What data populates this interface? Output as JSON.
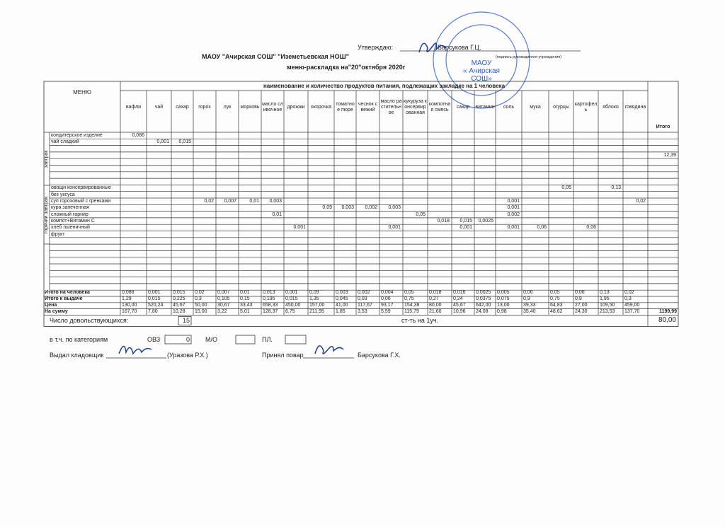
{
  "approval": {
    "label": "Утверждаю:",
    "name": "Барсукова Г.Ц.",
    "caption": "(подпись руководителя учреждения)"
  },
  "header": {
    "school": "МАОУ \"Ачирская СОШ\" \"Иземетьевская НОШ\"",
    "title": "меню-раскладка на\"20\"октября 2020г"
  },
  "stamp": [
    "МАОУ",
    "« Ачирская",
    "СОШ»"
  ],
  "table": {
    "menu_header": "МЕНЮ",
    "products_header": "наименование и количество продуктов питания, подлежащих закладке на 1 человека",
    "total_header": "Итого",
    "columns": [
      "вафли",
      "чай",
      "сахар",
      "горох",
      "лук",
      "моркoвь",
      "масло сливочное",
      "дрожжи",
      "окорочка",
      "томатное пюре",
      "чеснок свежий",
      "масло растительное",
      "кукуруза консервированная",
      "компотная смесь",
      "сахар",
      "витамин",
      "соль",
      "мука",
      "огурцы",
      "картофель",
      "яблоко",
      "говядина"
    ],
    "groups": [
      {
        "label": "завтрак",
        "rows": [
          {
            "name": "кондитерское изделие",
            "cells": [
              "0,086",
              null,
              null,
              null,
              null,
              null,
              null,
              null,
              null,
              null,
              null,
              null,
              null,
              null,
              null,
              null,
              null,
              null,
              null,
              null,
              null,
              null
            ]
          },
          {
            "name": "чай сладкий",
            "cells": [
              null,
              "0,001",
              "0,015",
              null,
              null,
              null,
              null,
              null,
              null,
              null,
              null,
              null,
              null,
              null,
              null,
              null,
              null,
              null,
              null,
              null,
              null,
              null
            ]
          }
        ]
      },
      {
        "label": "горячий завтрак",
        "rows": [
          {
            "name": "овощи консервированные",
            "cells": [
              null,
              null,
              null,
              null,
              null,
              null,
              null,
              null,
              null,
              null,
              null,
              null,
              null,
              null,
              null,
              null,
              null,
              null,
              "0,05",
              null,
              "0,13",
              null
            ]
          },
          {
            "name": "без уксуса",
            "cells": [
              null,
              null,
              null,
              null,
              null,
              null,
              null,
              null,
              null,
              null,
              null,
              null,
              null,
              null,
              null,
              null,
              null,
              null,
              null,
              null,
              null,
              null
            ]
          },
          {
            "name": "суп гороховый с гренками",
            "cells": [
              null,
              null,
              null,
              "0,02",
              "0,007",
              "0,01",
              "0,003",
              null,
              null,
              null,
              null,
              null,
              null,
              null,
              null,
              null,
              "0,001",
              null,
              null,
              null,
              null,
              "0,02"
            ]
          },
          {
            "name": "кура запеченная",
            "cells": [
              null,
              null,
              null,
              null,
              null,
              null,
              null,
              null,
              "0,09",
              "0,003",
              "0,002",
              "0,003",
              null,
              null,
              null,
              null,
              "0,001",
              null,
              null,
              null,
              null,
              null
            ]
          },
          {
            "name": "сложный гарнир",
            "cells": [
              null,
              null,
              null,
              null,
              null,
              null,
              "0,01",
              null,
              null,
              null,
              null,
              null,
              "0,05",
              null,
              null,
              null,
              "0,002",
              null,
              null,
              null,
              null,
              null
            ]
          },
          {
            "name": "компот+Витамин С",
            "cells": [
              null,
              null,
              null,
              null,
              null,
              null,
              null,
              null,
              null,
              null,
              null,
              null,
              null,
              "0,018",
              "0,015",
              "0,0025",
              null,
              null,
              null,
              null,
              null,
              null
            ]
          },
          {
            "name": "хлеб пшеничный",
            "cells": [
              null,
              null,
              null,
              null,
              null,
              null,
              null,
              "0,001",
              null,
              null,
              null,
              "0,001",
              null,
              null,
              "0,001",
              null,
              "0,001",
              "0,06",
              null,
              "0,06",
              null,
              null
            ]
          },
          {
            "name": "фрукт",
            "cells": [
              null,
              null,
              null,
              null,
              null,
              null,
              null,
              null,
              null,
              null,
              null,
              null,
              null,
              null,
              null,
              null,
              null,
              null,
              null,
              null,
              null,
              null
            ]
          }
        ]
      }
    ],
    "breakfast_total": "12,39",
    "summary": [
      {
        "label": "Итого на человека",
        "values": [
          "0,086",
          "0,001",
          "0,015",
          "0,02",
          "0,007",
          "0,01",
          "0,013",
          "0,001",
          "0,09",
          "0,003",
          "0,002",
          "0,004",
          "0,05",
          "0,018",
          "0,016",
          "0,0025",
          "0,005",
          "0,06",
          "0,05",
          "0,06",
          "0,13",
          "0,02"
        ]
      },
      {
        "label": "Итого к выдаче",
        "values": [
          "1,29",
          "0,015",
          "0,225",
          "0,3",
          "0,105",
          "0,15",
          "0,195",
          "0,015",
          "1,35",
          "0,045",
          "0,03",
          "0,06",
          "0,75",
          "0,27",
          "0,24",
          "0,0375",
          "0,075",
          "0,9",
          "0,75",
          "0,9",
          "1,95",
          "0,3"
        ]
      },
      {
        "label": "Цена",
        "values": [
          "130,00",
          "520,24",
          "45,67",
          "50,00",
          "30,67",
          "33,43",
          "658,33",
          "450,00",
          "157,00",
          "41,00",
          "117,67",
          "93,17",
          "154,38",
          "80,00",
          "45,67",
          "642,00",
          "13,00",
          "39,33",
          "64,83",
          "27,00",
          "109,50",
          "459,00"
        ]
      },
      {
        "label": "На сумму",
        "values": [
          "167,70",
          "7,80",
          "10,28",
          "15,00",
          "3,22",
          "5,01",
          "128,37",
          "6,75",
          "211,95",
          "1,85",
          "3,53",
          "5,59",
          "115,79",
          "21,60",
          "10,96",
          "24,08",
          "0,98",
          "35,40",
          "48,62",
          "24,30",
          "213,53",
          "137,70"
        ]
      }
    ],
    "grand_total": "1199,99"
  },
  "footer": {
    "count_label": "Число довольствующихся:",
    "count": "15",
    "cost_label": "ст-ть на 1уч.",
    "cost": "80,00",
    "categories_label": "в т.ч. по категориям",
    "ovz_label": "ОВЗ",
    "ovz": "0",
    "mo_label": "М/О",
    "pl_label": "ПЛ.",
    "issued_label": "Выдал кладовщик",
    "issued_name": "(Уразова Р.Х.)",
    "received_label": "Принял повар",
    "received_name": "Барсукова Г.Х."
  }
}
